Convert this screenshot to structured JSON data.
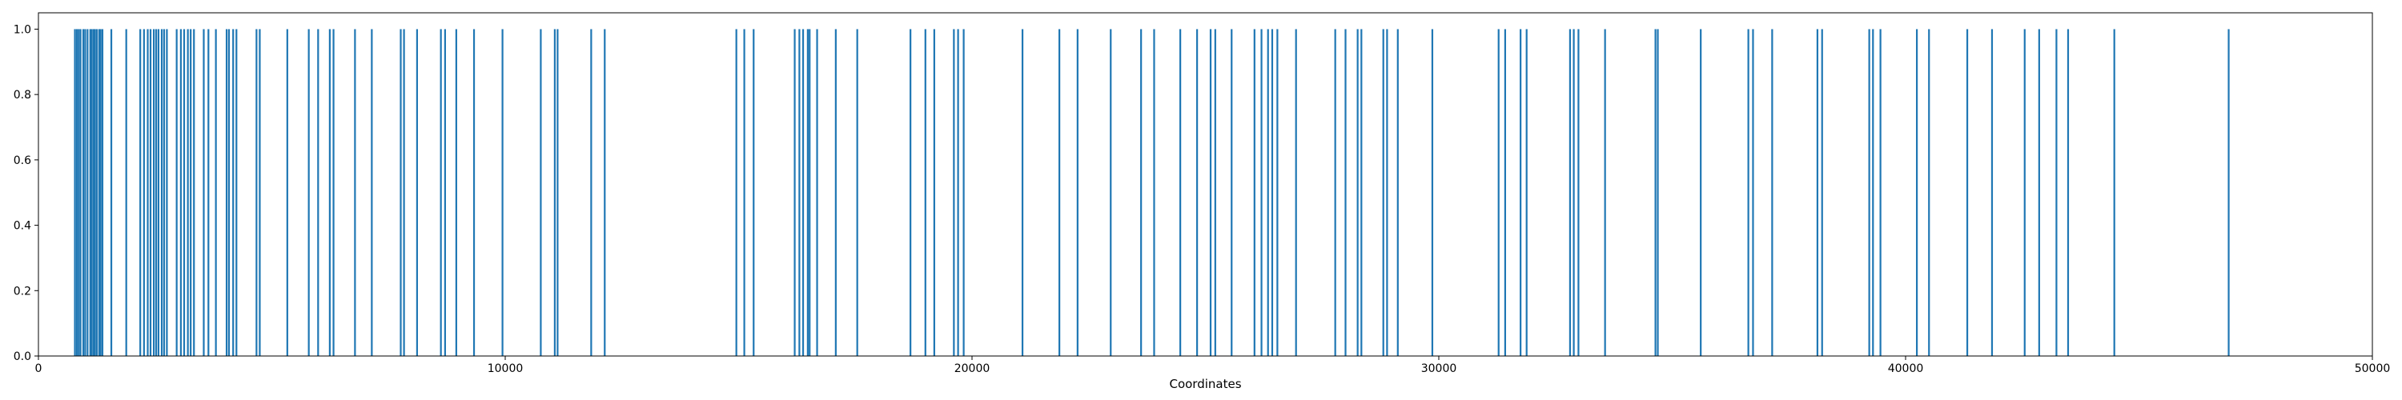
{
  "chart_data": {
    "type": "bar",
    "title": "",
    "xlabel": "Coordinates",
    "ylabel": "",
    "xlim": [
      0,
      50000
    ],
    "ylim": [
      0,
      1.05
    ],
    "xticks": [
      "0",
      "10000",
      "20000",
      "30000",
      "40000",
      "50000"
    ],
    "xtick_values": [
      0,
      10000,
      20000,
      30000,
      40000,
      50000
    ],
    "yticks": [
      "0.0",
      "0.2",
      "0.4",
      "0.6",
      "0.8",
      "1.0"
    ],
    "ytick_values": [
      0,
      0.2,
      0.4,
      0.6,
      0.8,
      1.0
    ],
    "grid": false,
    "legend": "none",
    "series_color": "#1f77b4",
    "bar_value": 1.0,
    "x": [
      780,
      820,
      860,
      900,
      960,
      1000,
      1050,
      1110,
      1140,
      1180,
      1210,
      1250,
      1300,
      1330,
      1370,
      1560,
      1880,
      2180,
      2260,
      2340,
      2400,
      2470,
      2520,
      2570,
      2640,
      2690,
      2750,
      2960,
      3050,
      3120,
      3200,
      3260,
      3330,
      3540,
      3640,
      3800,
      4030,
      4080,
      4170,
      4240,
      4670,
      4740,
      5330,
      5790,
      5990,
      6240,
      6320,
      6780,
      7140,
      7760,
      7830,
      8110,
      8620,
      8710,
      8950,
      9330,
      9940,
      10760,
      11060,
      11120,
      11840,
      12130,
      14950,
      15120,
      15320,
      16200,
      16300,
      16380,
      16480,
      16520,
      16680,
      17080,
      17540,
      18680,
      19000,
      19190,
      19610,
      19700,
      19820,
      21080,
      21870,
      22260,
      22970,
      23620,
      23900,
      24460,
      24820,
      25110,
      25210,
      25560,
      26050,
      26200,
      26340,
      26430,
      26540,
      26940,
      27780,
      28000,
      28260,
      28340,
      28810,
      28890,
      29120,
      29860,
      31280,
      31420,
      31750,
      31880,
      32810,
      32890,
      32990,
      33560,
      34640,
      34690,
      35610,
      36630,
      36730,
      37140,
      38110,
      38210,
      39220,
      39300,
      39460,
      40240,
      40500,
      41320,
      41850,
      42550,
      42860,
      43230,
      43480,
      44470,
      46920
    ]
  }
}
